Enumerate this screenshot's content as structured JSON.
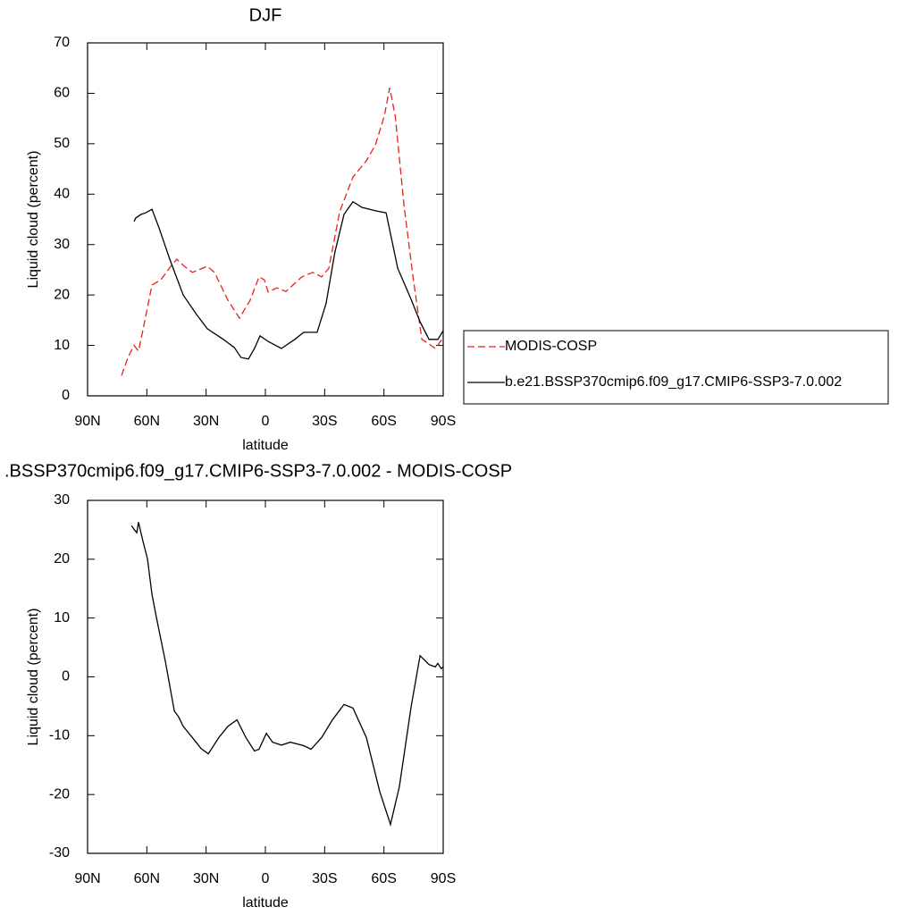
{
  "chart_data": [
    {
      "type": "line",
      "title": "DJF",
      "xlabel": "latitude",
      "ylabel": "Liquid cloud (percent)",
      "xlim": [
        90,
        -90
      ],
      "xticks": [
        {
          "value": 90,
          "label": "90N"
        },
        {
          "value": 60,
          "label": "60N"
        },
        {
          "value": 30,
          "label": "30N"
        },
        0,
        {
          "value": -30,
          "label": "30S"
        },
        {
          "value": -60,
          "label": "60S"
        },
        {
          "value": -90,
          "label": "90S"
        }
      ],
      "ylim": [
        0,
        70
      ],
      "yticks": [
        0,
        10,
        20,
        30,
        40,
        50,
        60,
        70
      ],
      "legend": "right",
      "series": [
        {
          "name": "MODIS-COSP",
          "color": "#e8211d",
          "dash": true,
          "x": [
            72.8,
            69.6,
            66.5,
            64.2,
            62,
            57.4,
            52.9,
            47.5,
            44.8,
            41.6,
            37,
            29.4,
            25.8,
            19,
            13.1,
            7.7,
            3.2,
            0.5,
            -1.4,
            -5.9,
            -10.4,
            -18.5,
            -24,
            -28.5,
            -32.1,
            -37.6,
            -44.3,
            -51.1,
            -55.7,
            -60.2,
            -62.9,
            -65.7,
            -70.2,
            -74.7,
            -79.2,
            -82.8,
            -86,
            -90
          ],
          "values": [
            4,
            7.6,
            10,
            8.9,
            13,
            22,
            23,
            25.9,
            27.1,
            25.9,
            24.5,
            25.7,
            24.5,
            19,
            15.4,
            19,
            23.6,
            23,
            20.6,
            21.4,
            20.7,
            23.6,
            24.5,
            23.6,
            25.3,
            36.5,
            43.4,
            46.6,
            49.8,
            55.5,
            61.1,
            55.5,
            37.7,
            23.6,
            11.2,
            10.3,
            9.4,
            11.5
          ]
        },
        {
          "name": "b.e21.BSSP370cmip6.f09_g17.CMIP6-SSP3-7.0.002",
          "color": "#000000",
          "dash": false,
          "x": [
            66.5,
            65.6,
            62.9,
            60.6,
            57.4,
            53.8,
            48.4,
            41.6,
            34.8,
            29.4,
            21.3,
            15.8,
            12.3,
            8.6,
            5.5,
            2.7,
            -1.4,
            -8.1,
            -14.9,
            -19.4,
            -26.2,
            -30.7,
            -35.2,
            -39.8,
            -44.3,
            -48.8,
            -55.7,
            -61.1,
            -67,
            -73.8,
            -78.3,
            -82.8,
            -87.3,
            -90
          ],
          "values": [
            34.6,
            35.3,
            36,
            36.3,
            37,
            33.3,
            27.1,
            20,
            16.1,
            13.3,
            11.2,
            9.6,
            7.6,
            7.3,
            9.4,
            11.9,
            10.8,
            9.4,
            11.2,
            12.6,
            12.6,
            18.3,
            28.5,
            36,
            38.5,
            37.4,
            36.7,
            36.3,
            25.3,
            19.1,
            14.7,
            11.2,
            11.2,
            12.9
          ]
        }
      ]
    },
    {
      "type": "line",
      "title": ".BSSP370cmip6.f09_g17.CMIP6-SSP3-7.0.002 - MODIS-COSP",
      "xlabel": "latitude",
      "ylabel": "Liquid cloud (percent)",
      "xlim": [
        90,
        -90
      ],
      "xticks": [
        {
          "value": 90,
          "label": "90N"
        },
        {
          "value": 60,
          "label": "60N"
        },
        {
          "value": 30,
          "label": "30N"
        },
        0,
        {
          "value": -30,
          "label": "30S"
        },
        {
          "value": -60,
          "label": "60S"
        },
        {
          "value": -90,
          "label": "90S"
        }
      ],
      "ylim": [
        -30,
        30
      ],
      "yticks": [
        -30,
        -20,
        -10,
        0,
        10,
        20,
        30
      ],
      "series": [
        {
          "color": "#000000",
          "dash": false,
          "x": [
            67.8,
            66.5,
            65.1,
            64.2,
            62,
            59.7,
            57.4,
            55.2,
            50.6,
            46.1,
            43.9,
            41.6,
            37,
            32.5,
            28.9,
            23.5,
            19,
            14.4,
            9.9,
            5.5,
            3.2,
            -0.5,
            -3.6,
            -8.1,
            -12.6,
            -19.4,
            -23.1,
            -28.5,
            -33.9,
            -39.8,
            -44.3,
            -51.1,
            -57.9,
            -63.3,
            -67.8,
            -73.8,
            -78.3,
            -82.8,
            -86,
            -87.3,
            -89,
            -90
          ],
          "values": [
            25.7,
            25.1,
            24.5,
            26.3,
            23.1,
            20.1,
            14,
            10.2,
            2.6,
            -5.8,
            -6.8,
            -8.4,
            -10.3,
            -12.2,
            -13.1,
            -10.3,
            -8.4,
            -7.3,
            -10.3,
            -12.6,
            -12.3,
            -9.6,
            -11.1,
            -11.6,
            -11.1,
            -11.7,
            -12.3,
            -10.3,
            -7.3,
            -4.7,
            -5.3,
            -10.3,
            -19.5,
            -25.1,
            -18.7,
            -5,
            3.6,
            2.1,
            1.7,
            2.3,
            1.4,
            1.7
          ]
        }
      ]
    }
  ]
}
